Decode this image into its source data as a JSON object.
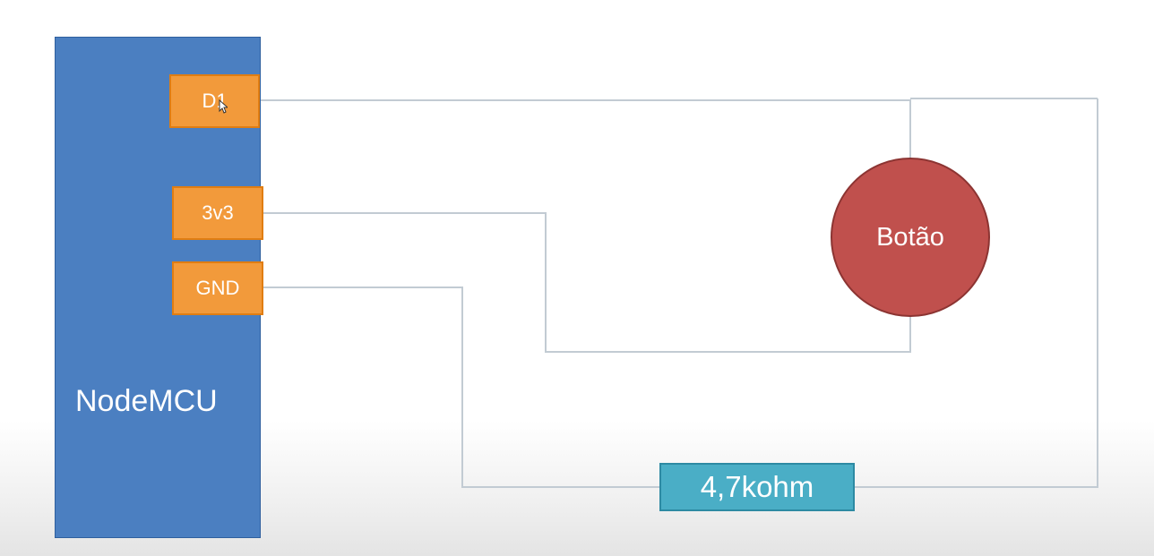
{
  "board": {
    "label": "NodeMCU",
    "pins": {
      "d1": "D1",
      "v33": "3v3",
      "gnd": "GND"
    }
  },
  "button": {
    "label": "Botão"
  },
  "resistor": {
    "label": "4,7kohm"
  },
  "colors": {
    "board": "#4b7fc1",
    "pin": "#f29a3b",
    "button": "#c0504d",
    "resistor": "#4aaec6",
    "wire": "#c2cbd3"
  },
  "icons": {
    "cursor": "mouse-pointer-icon"
  }
}
